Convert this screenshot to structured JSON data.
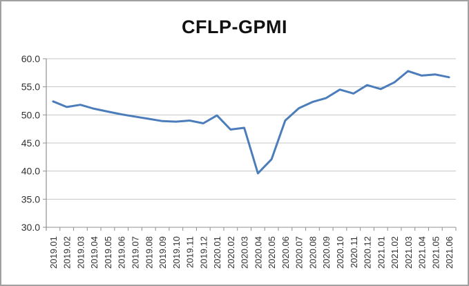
{
  "chart_data": {
    "type": "line",
    "title": "CFLP-GPMI",
    "xlabel": "",
    "ylabel": "",
    "ylim": [
      30.0,
      60.0
    ],
    "ytick_step": 5,
    "ytick_labels": [
      "60.0",
      "55.0",
      "50.0",
      "45.0",
      "40.0",
      "35.0",
      "30.0"
    ],
    "grid": "horizontal-only",
    "legend_position": "none",
    "categories": [
      "2019.01",
      "2019.02",
      "2019.03",
      "2019.04",
      "2019.05",
      "2019.06",
      "2019.07",
      "2019.08",
      "2019.09",
      "2019.10",
      "2019.11",
      "2019.12",
      "2020.01",
      "2020.02",
      "2020.03",
      "2020.04",
      "2020.05",
      "2020.06",
      "2020.07",
      "2020.08",
      "2020.09",
      "2020.10",
      "2020.11",
      "2020.12",
      "2021.01",
      "2021.02",
      "2021.03",
      "2021.04",
      "2021.05",
      "2021.06"
    ],
    "series": [
      {
        "name": "CFLP-GPMI",
        "color": "#4b7dba",
        "values": [
          52.4,
          51.4,
          51.8,
          51.1,
          50.6,
          50.1,
          49.7,
          49.3,
          48.9,
          48.8,
          49.0,
          48.5,
          49.9,
          47.4,
          47.7,
          39.6,
          42.1,
          49.0,
          51.2,
          52.3,
          53.0,
          54.5,
          53.8,
          55.3,
          54.6,
          55.8,
          57.8,
          57.0,
          57.2,
          56.7
        ]
      }
    ]
  },
  "colors": {
    "line": "#4b7dba",
    "gridline": "#c4c4c4",
    "axis": "#8f8f8f",
    "tick_text": "#303030",
    "title_text": "#111111",
    "border": "#a0a0a0",
    "background": "#ffffff"
  }
}
